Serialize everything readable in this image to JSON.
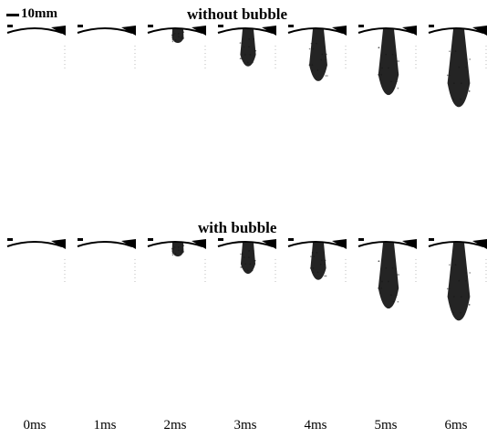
{
  "scale": {
    "label": "10mm"
  },
  "rows": [
    {
      "label": "without bubble",
      "penetration": [
        0.0,
        0.0,
        0.18,
        0.45,
        0.62,
        0.78,
        0.92
      ]
    },
    {
      "label": "with bubble",
      "penetration": [
        0.0,
        0.0,
        0.18,
        0.38,
        0.45,
        0.78,
        0.92
      ]
    }
  ],
  "times": [
    "0ms",
    "1ms",
    "2ms",
    "3ms",
    "4ms",
    "5ms",
    "6ms"
  ],
  "colors": {
    "spray": "#111111",
    "ink": "#000000",
    "background": "#ffffff"
  }
}
